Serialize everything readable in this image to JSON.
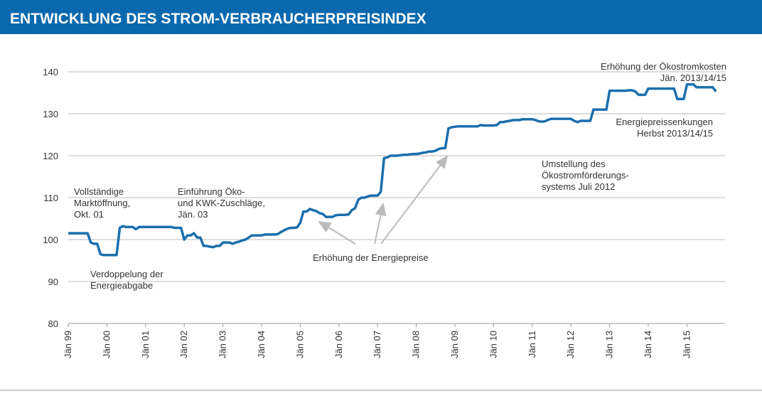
{
  "chart_data": {
    "type": "line",
    "title": "ENTWICKLUNG DES STROM-VERBRAUCHERPREISINDEX",
    "categories": [
      "Jän 99",
      null,
      null,
      null,
      null,
      null,
      null,
      null,
      null,
      null,
      null,
      null,
      "Jän 00",
      null,
      null,
      null,
      null,
      null,
      null,
      null,
      null,
      null,
      null,
      null,
      "Jän 01",
      null,
      null,
      null,
      null,
      null,
      null,
      null,
      null,
      null,
      null,
      null,
      "Jän 02",
      null,
      null,
      null,
      null,
      null,
      null,
      null,
      null,
      null,
      null,
      null,
      "Jän 03",
      null,
      null,
      null,
      null,
      null,
      null,
      null,
      null,
      null,
      null,
      null,
      "Jän 04",
      null,
      null,
      null,
      null,
      null,
      null,
      null,
      null,
      null,
      null,
      null,
      "Jän 05",
      null,
      null,
      null,
      null,
      null,
      null,
      null,
      null,
      null,
      null,
      null,
      "Jän 06",
      null,
      null,
      null,
      null,
      null,
      null,
      null,
      null,
      null,
      null,
      null,
      "Jän 07",
      null,
      null,
      null,
      null,
      null,
      null,
      null,
      null,
      null,
      null,
      null,
      "Jän 08",
      null,
      null,
      null,
      null,
      null,
      null,
      null,
      null,
      null,
      null,
      null,
      "Jän 09",
      null,
      null,
      null,
      null,
      null,
      null,
      null,
      null,
      null,
      null,
      null,
      "Jän 10",
      null,
      null,
      null,
      null,
      null,
      null,
      null,
      null,
      null,
      null,
      null,
      "Jän 11",
      null,
      null,
      null,
      null,
      null,
      null,
      null,
      null,
      null,
      null,
      null,
      "Jän 12",
      null,
      null,
      null,
      null,
      null,
      null,
      null,
      null,
      null,
      null,
      null,
      "Jän 13",
      null,
      null,
      null,
      null,
      null,
      null,
      null,
      null,
      null,
      null,
      null,
      "Jän 14",
      null,
      null,
      null,
      null,
      null,
      null,
      null,
      null,
      null,
      null,
      null,
      "Jän 15",
      null,
      null,
      null,
      null,
      null,
      null,
      null,
      null,
      null
    ],
    "values": [
      101.5,
      101.5,
      101.5,
      101.5,
      101.5,
      101.5,
      101.5,
      99.3,
      99,
      99,
      96.5,
      96.3,
      96.3,
      96.3,
      96.3,
      96.3,
      102.8,
      103.2,
      103,
      103,
      103,
      102.5,
      103,
      103,
      103,
      103,
      103,
      103,
      103,
      103,
      103,
      103,
      103,
      102.8,
      102.8,
      102.8,
      100,
      101,
      101,
      101.5,
      100.5,
      100.5,
      98.5,
      98.5,
      98.3,
      98.2,
      98.5,
      98.5,
      99.3,
      99.3,
      99.3,
      99,
      99.3,
      99.5,
      99.8,
      100,
      100.5,
      101,
      101,
      101,
      101,
      101.2,
      101.2,
      101.2,
      101.2,
      101.3,
      101.8,
      102.2,
      102.6,
      102.8,
      102.8,
      102.9,
      104,
      106.7,
      106.7,
      107.3,
      107,
      106.8,
      106.3,
      106.1,
      105.4,
      105.4,
      105.4,
      105.8,
      105.9,
      105.9,
      105.9,
      106,
      107,
      107.5,
      109.5,
      110,
      110,
      110.3,
      110.5,
      110.5,
      110.5,
      111.4,
      119.4,
      119.6,
      120,
      120,
      120,
      120.1,
      120.2,
      120.2,
      120.3,
      120.4,
      120.4,
      120.5,
      120.7,
      120.8,
      121,
      121,
      121.2,
      121.6,
      121.8,
      121.8,
      126.5,
      126.8,
      126.9,
      127,
      127,
      127,
      127,
      127,
      127,
      127,
      127.3,
      127.2,
      127.2,
      127.2,
      127.2,
      127.3,
      128,
      128,
      128.2,
      128.3,
      128.5,
      128.5,
      128.5,
      128.7,
      128.7,
      128.7,
      128.7,
      128.5,
      128.2,
      128.1,
      128.2,
      128.6,
      128.8,
      128.8,
      128.8,
      128.8,
      128.8,
      128.8,
      128.8,
      128.3,
      128,
      128.3,
      128.3,
      128.3,
      128.3,
      131,
      131,
      131,
      131,
      131,
      135.5,
      135.5,
      135.5,
      135.5,
      135.5,
      135.5,
      135.6,
      135.6,
      135.3,
      134.5,
      134.5,
      134.5,
      136,
      136,
      136,
      136,
      136,
      136,
      136,
      136,
      136,
      133.5,
      133.5,
      133.5,
      137,
      137,
      137,
      136.3,
      136.3,
      136.3,
      136.3,
      136.3,
      136.3,
      135.3
    ],
    "color": "#1a6fae",
    "ylim": [
      80,
      140
    ],
    "yticks": [
      80,
      90,
      100,
      110,
      120,
      130,
      140
    ],
    "grid": true,
    "annotations": {
      "markt": [
        "Vollständige",
        "Marktöffnung,",
        "Okt. 01"
      ],
      "abgabe": [
        "Verdoppelung der",
        "Energieabgabe"
      ],
      "oeko": [
        "Einführung Öko-",
        "und KWK-Zuschläge,",
        "Jän. 03"
      ],
      "preise": [
        "Erhöhung der Energiepreise"
      ],
      "umstellung": [
        "Umstellung des",
        "Ökostromförderungs-",
        "systems Juli 2012"
      ],
      "senkung": [
        "Energiepreissenkungen",
        "Herbst 2013/14/15"
      ],
      "kosten": [
        "Erhöhung der Ökostromkosten",
        "Jän. 2013/14/15"
      ]
    }
  }
}
